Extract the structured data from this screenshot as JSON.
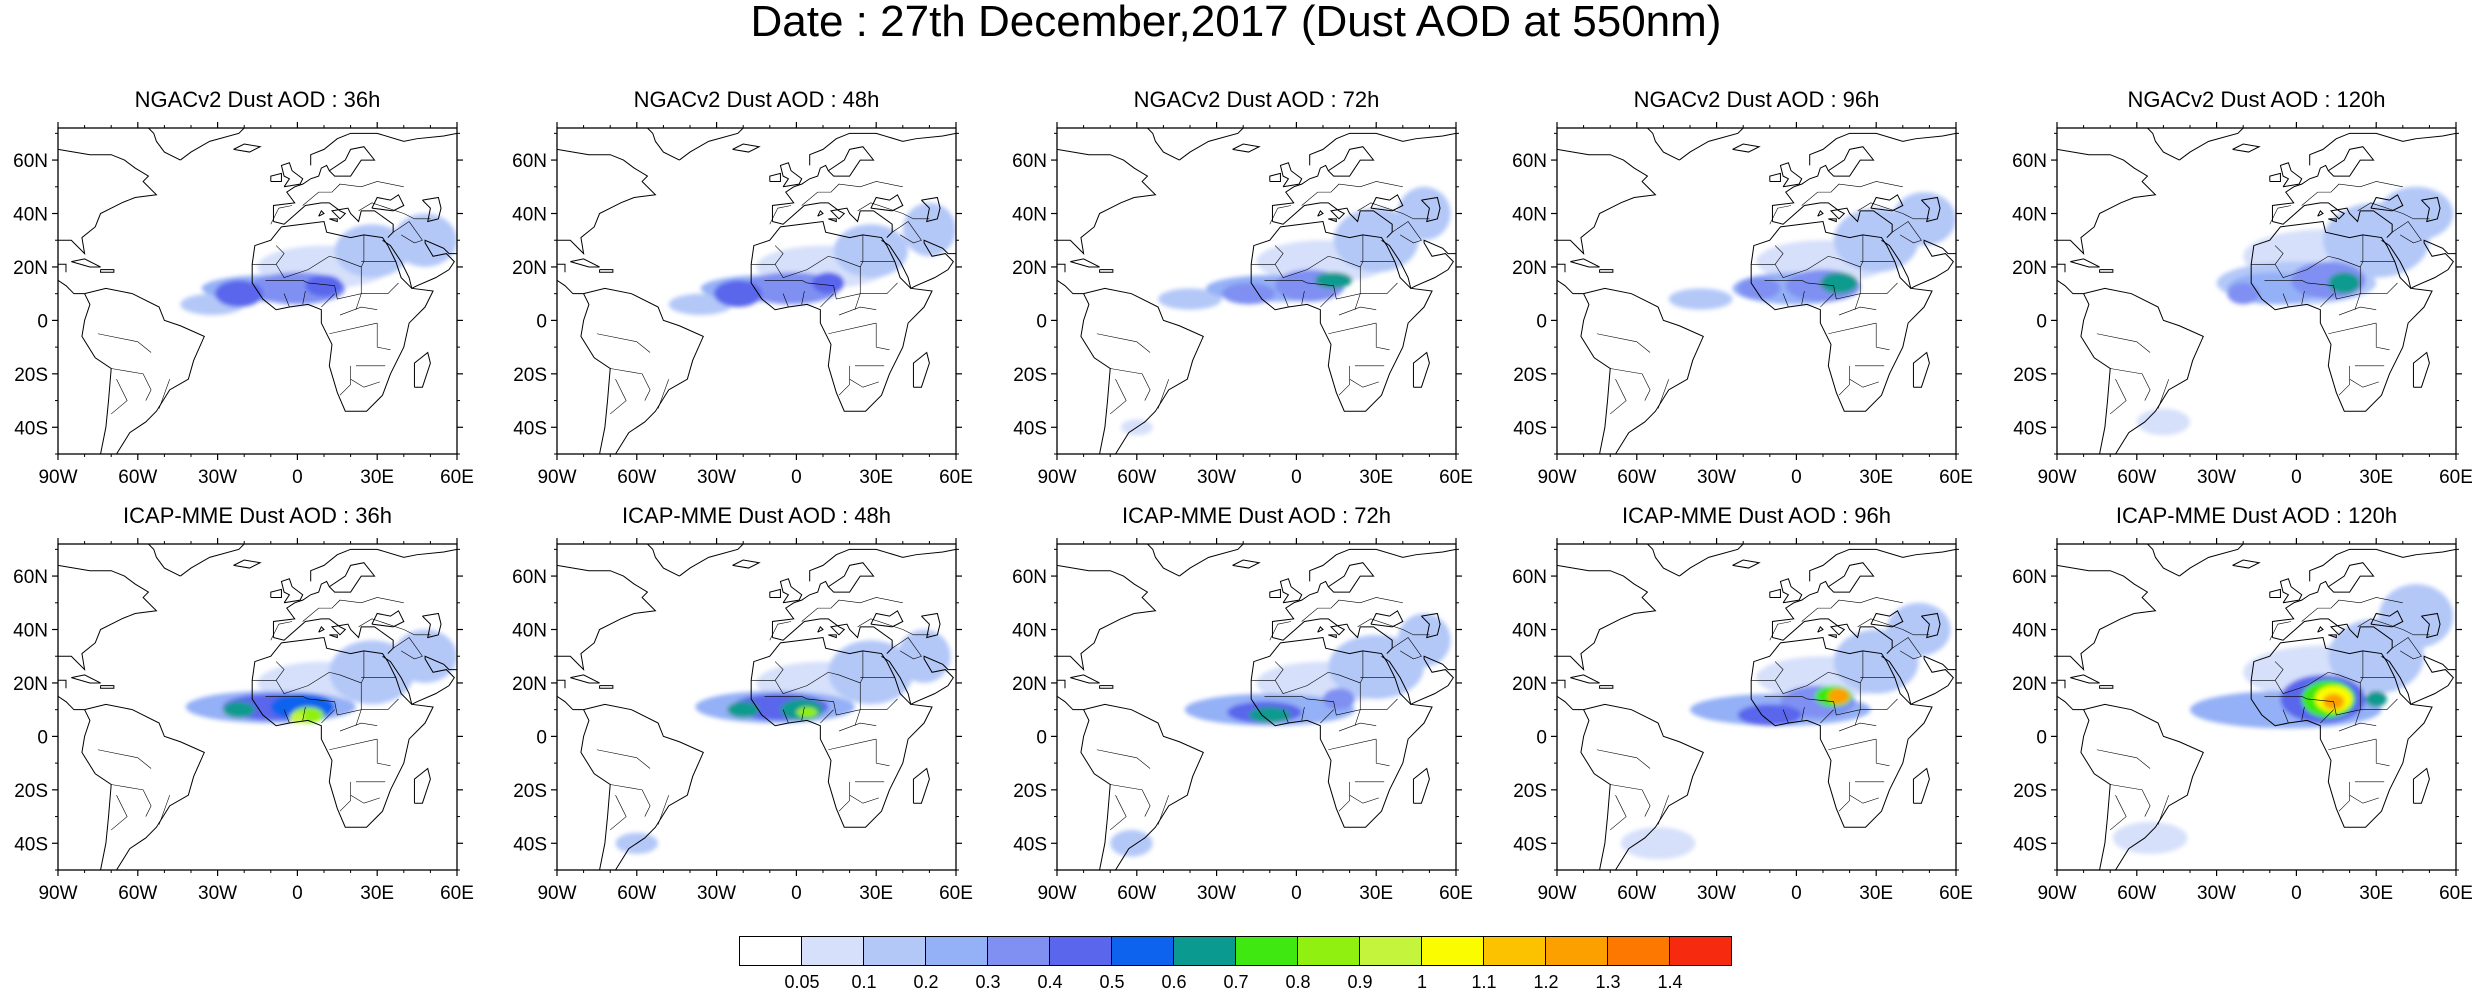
{
  "title": "Date : 27th December,2017 (Dust AOD at 550nm)",
  "panels": [
    {
      "title": "NGACv2 Dust AOD : 36h",
      "model": "NGACv2",
      "lead": "36h",
      "blobs": [
        [
          -10,
          12,
          26,
          5,
          3
        ],
        [
          0,
          12,
          18,
          6,
          4
        ],
        [
          -22,
          10,
          9,
          5,
          5
        ],
        [
          10,
          13,
          7,
          4,
          5
        ],
        [
          28,
          26,
          14,
          10,
          2
        ],
        [
          48,
          30,
          12,
          10,
          2
        ],
        [
          -32,
          6,
          12,
          4,
          2
        ],
        [
          10,
          20,
          25,
          8,
          1
        ]
      ]
    },
    {
      "title": "NGACv2 Dust AOD : 48h",
      "model": "NGACv2",
      "lead": "48h",
      "blobs": [
        [
          -10,
          12,
          26,
          5,
          3
        ],
        [
          -2,
          12,
          18,
          6,
          4
        ],
        [
          -22,
          10,
          9,
          5,
          5
        ],
        [
          12,
          14,
          6,
          4,
          5
        ],
        [
          28,
          26,
          14,
          10,
          2
        ],
        [
          50,
          34,
          10,
          10,
          2
        ],
        [
          -36,
          6,
          12,
          4,
          2
        ],
        [
          10,
          20,
          25,
          8,
          1
        ]
      ]
    },
    {
      "title": "NGACv2 Dust AOD : 72h",
      "model": "NGACv2",
      "lead": "72h",
      "blobs": [
        [
          -8,
          12,
          26,
          5,
          3
        ],
        [
          -18,
          10,
          10,
          4,
          4
        ],
        [
          5,
          13,
          13,
          6,
          4
        ],
        [
          14,
          15,
          7,
          3,
          7
        ],
        [
          30,
          30,
          16,
          12,
          2
        ],
        [
          48,
          40,
          10,
          10,
          2
        ],
        [
          -40,
          8,
          12,
          4,
          2
        ],
        [
          10,
          22,
          25,
          8,
          1
        ],
        [
          -60,
          -40,
          6,
          3,
          1
        ]
      ]
    },
    {
      "title": "NGACv2 Dust AOD : 96h",
      "model": "NGACv2",
      "lead": "96h",
      "blobs": [
        [
          0,
          12,
          24,
          6,
          3
        ],
        [
          -14,
          12,
          8,
          4,
          4
        ],
        [
          10,
          13,
          14,
          6,
          4
        ],
        [
          16,
          14,
          7,
          4,
          7
        ],
        [
          30,
          30,
          16,
          12,
          2
        ],
        [
          48,
          38,
          12,
          10,
          2
        ],
        [
          -36,
          8,
          12,
          4,
          2
        ],
        [
          10,
          22,
          25,
          8,
          1
        ]
      ]
    },
    {
      "title": "NGACv2 Dust AOD : 120h",
      "model": "NGACv2",
      "lead": "120h",
      "blobs": [
        [
          0,
          14,
          30,
          8,
          2
        ],
        [
          -8,
          12,
          18,
          6,
          3
        ],
        [
          12,
          15,
          14,
          7,
          4
        ],
        [
          18,
          14,
          6,
          4,
          7
        ],
        [
          -20,
          10,
          6,
          4,
          4
        ],
        [
          30,
          30,
          20,
          14,
          2
        ],
        [
          45,
          40,
          14,
          10,
          2
        ],
        [
          -50,
          -38,
          10,
          5,
          1
        ],
        [
          10,
          24,
          30,
          10,
          1
        ]
      ]
    },
    {
      "title": "ICAP-MME Dust AOD : 36h",
      "model": "ICAP-MME",
      "lead": "36h",
      "blobs": [
        [
          -10,
          11,
          32,
          6,
          3
        ],
        [
          -8,
          11,
          20,
          5,
          5
        ],
        [
          2,
          11,
          12,
          5,
          6
        ],
        [
          -22,
          10,
          6,
          3,
          7
        ],
        [
          4,
          8,
          6,
          3,
          9
        ],
        [
          0,
          7,
          3,
          2,
          10
        ],
        [
          28,
          24,
          16,
          12,
          2
        ],
        [
          48,
          30,
          12,
          10,
          2
        ],
        [
          10,
          20,
          25,
          8,
          1
        ]
      ]
    },
    {
      "title": "ICAP-MME Dust AOD : 48h",
      "model": "ICAP-MME",
      "lead": "48h",
      "blobs": [
        [
          -8,
          11,
          30,
          6,
          3
        ],
        [
          -6,
          11,
          18,
          5,
          5
        ],
        [
          -20,
          10,
          6,
          3,
          7
        ],
        [
          2,
          10,
          8,
          4,
          7
        ],
        [
          4,
          9,
          4,
          2,
          9
        ],
        [
          28,
          24,
          16,
          12,
          2
        ],
        [
          48,
          30,
          10,
          10,
          2
        ],
        [
          -60,
          -40,
          8,
          4,
          2
        ],
        [
          10,
          20,
          25,
          8,
          1
        ]
      ]
    },
    {
      "title": "ICAP-MME Dust AOD : 72h",
      "model": "ICAP-MME",
      "lead": "72h",
      "blobs": [
        [
          -10,
          10,
          32,
          6,
          3
        ],
        [
          -12,
          9,
          14,
          4,
          5
        ],
        [
          -10,
          8,
          8,
          3,
          7
        ],
        [
          16,
          14,
          6,
          4,
          4
        ],
        [
          30,
          26,
          18,
          12,
          2
        ],
        [
          48,
          36,
          10,
          10,
          2
        ],
        [
          -62,
          -40,
          8,
          5,
          2
        ],
        [
          10,
          20,
          25,
          8,
          1
        ]
      ]
    },
    {
      "title": "ICAP-MME Dust AOD : 96h",
      "model": "ICAP-MME",
      "lead": "96h",
      "blobs": [
        [
          -6,
          10,
          34,
          6,
          3
        ],
        [
          -10,
          8,
          12,
          4,
          5
        ],
        [
          8,
          13,
          14,
          6,
          4
        ],
        [
          14,
          15,
          7,
          4,
          8
        ],
        [
          16,
          15,
          4,
          3,
          13
        ],
        [
          30,
          28,
          16,
          12,
          2
        ],
        [
          46,
          40,
          12,
          10,
          2
        ],
        [
          -52,
          -40,
          14,
          6,
          1
        ],
        [
          10,
          22,
          25,
          8,
          1
        ]
      ]
    },
    {
      "title": "ICAP-MME Dust AOD : 120h",
      "model": "ICAP-MME",
      "lead": "120h",
      "blobs": [
        [
          -4,
          10,
          36,
          7,
          3
        ],
        [
          10,
          14,
          16,
          9,
          5
        ],
        [
          12,
          14,
          10,
          7,
          8
        ],
        [
          14,
          14,
          7,
          5,
          11
        ],
        [
          14,
          13,
          4,
          3,
          13
        ],
        [
          30,
          14,
          4,
          3,
          7
        ],
        [
          30,
          30,
          18,
          14,
          2
        ],
        [
          45,
          45,
          14,
          12,
          2
        ],
        [
          -55,
          -38,
          14,
          6,
          1
        ],
        [
          10,
          24,
          30,
          10,
          1
        ]
      ]
    }
  ],
  "axes": {
    "lon_ticks": [
      "90W",
      "60W",
      "30W",
      "0",
      "30E",
      "60E"
    ],
    "lon_values": [
      -90,
      -60,
      -30,
      0,
      30,
      60
    ],
    "lat_ticks": [
      "60N",
      "40N",
      "20N",
      "0",
      "20S",
      "40S"
    ],
    "lat_values": [
      60,
      40,
      20,
      0,
      -20,
      -40
    ],
    "lon_range": [
      -90,
      60
    ],
    "lat_range": [
      -50,
      72
    ]
  },
  "colorbar": {
    "labels": [
      "0.05",
      "0.1",
      "0.2",
      "0.3",
      "0.4",
      "0.5",
      "0.6",
      "0.7",
      "0.8",
      "0.9",
      "1",
      "1.1",
      "1.2",
      "1.3",
      "1.4"
    ],
    "colors": [
      "#ffffff",
      "#d6e0fa",
      "#b4c8f8",
      "#94b0f6",
      "#7f90f2",
      "#5a66ec",
      "#0d63ee",
      "#0a9a8f",
      "#3ee810",
      "#90f010",
      "#c4f43c",
      "#fcfc00",
      "#fcc200",
      "#fca000",
      "#fc7800",
      "#f52a0e"
    ]
  }
}
